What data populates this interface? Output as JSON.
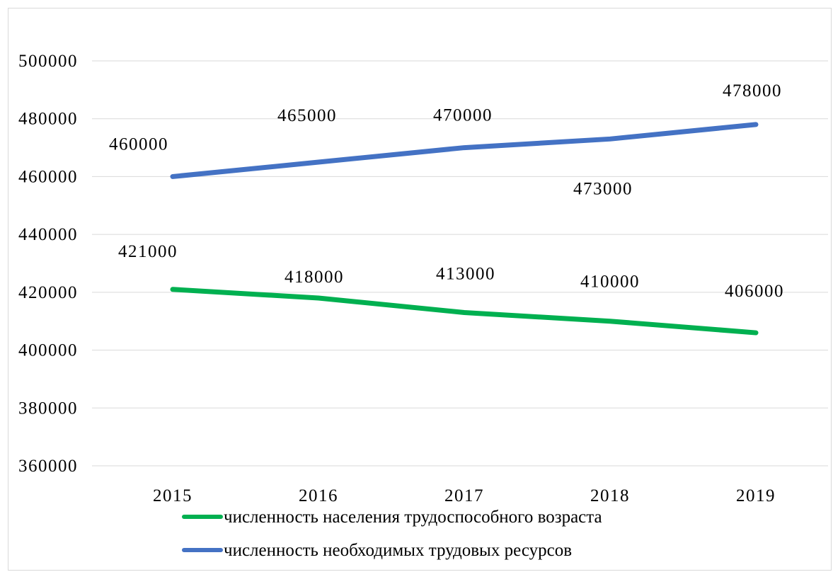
{
  "chart_data": {
    "type": "line",
    "categories": [
      "2015",
      "2016",
      "2017",
      "2018",
      "2019"
    ],
    "ylim": [
      360000,
      500000
    ],
    "yticks": [
      "500000",
      "480000",
      "460000",
      "440000",
      "420000",
      "400000",
      "380000",
      "360000"
    ],
    "grid": true,
    "legend_position": "bottom-left",
    "series": [
      {
        "name": "численность населения трудоспособного возраста",
        "color": "#00b050",
        "values": [
          421000,
          418000,
          413000,
          410000,
          406000
        ],
        "labels": [
          "421000",
          "418000",
          "413000",
          "410000",
          "406000"
        ]
      },
      {
        "name": "численность необходимых трудовых ресурсов",
        "color": "#4472c4",
        "values": [
          460000,
          465000,
          470000,
          473000,
          478000
        ],
        "labels": [
          "460000",
          "465000",
          "470000",
          "473000",
          "478000"
        ]
      }
    ]
  }
}
